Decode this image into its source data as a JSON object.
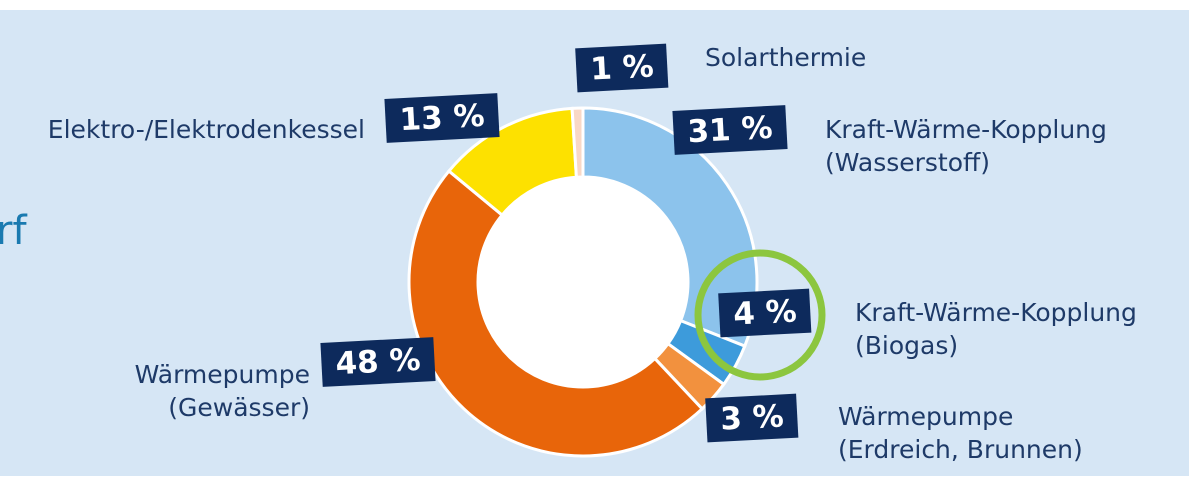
{
  "chart_data": {
    "type": "donut",
    "categories": [
      "Kraft-Wärme-Kopplung\n(Wasserstoff)",
      "Kraft-Wärme-Kopplung\n(Biogas)",
      "Wärmepumpe\n(Erdreich, Brunnen)",
      "Wärmepumpe\n(Gewässer)",
      "Elektro-/Elektrodenkessel",
      "Solarthermie"
    ],
    "values": [
      31,
      4,
      3,
      48,
      13,
      1
    ],
    "value_labels": [
      "31 %",
      "4 %",
      "3 %",
      "48 %",
      "13 %",
      "1 %"
    ],
    "colors": [
      "#8cc3ec",
      "#3d9bdb",
      "#f2913e",
      "#e8650a",
      "#fde100",
      "#f9d8c6"
    ],
    "annotation": "rf"
  }
}
